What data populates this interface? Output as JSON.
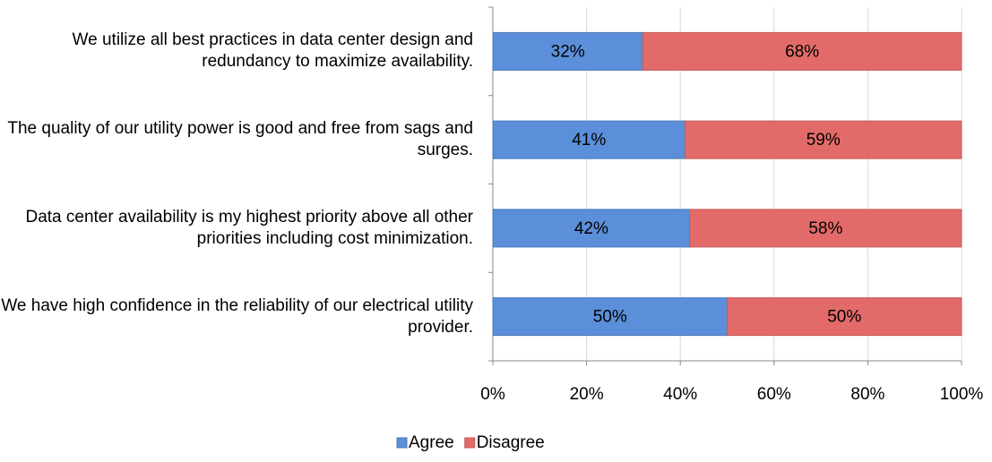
{
  "chart_data": {
    "type": "stacked_barh",
    "categories": [
      "We utilize all best practices in data center design and redundancy to maximize availability.",
      "The quality of our utility power is good and free from sags and surges.",
      "Data center availability is my highest priority above all other priorities including cost minimization.",
      "We have high confidence in the reliability of our electrical utility provider."
    ],
    "series": [
      {
        "name": "Agree",
        "color": "#5b8fd9",
        "values": [
          32,
          41,
          42,
          50
        ],
        "value_labels": [
          "32%",
          "41%",
          "42%",
          "50%"
        ]
      },
      {
        "name": "Disagree",
        "color": "#e26b69",
        "values": [
          68,
          59,
          58,
          50
        ],
        "value_labels": [
          "68%",
          "59%",
          "58%",
          "50%"
        ]
      }
    ],
    "xlim": [
      0,
      100
    ],
    "xticks": [
      {
        "value": 0,
        "label": "0%"
      },
      {
        "value": 20,
        "label": "20%"
      },
      {
        "value": 40,
        "label": "40%"
      },
      {
        "value": 60,
        "label": "60%"
      },
      {
        "value": 80,
        "label": "80%"
      },
      {
        "value": 100,
        "label": "100%"
      }
    ],
    "grid": true,
    "legend": "bottom"
  }
}
